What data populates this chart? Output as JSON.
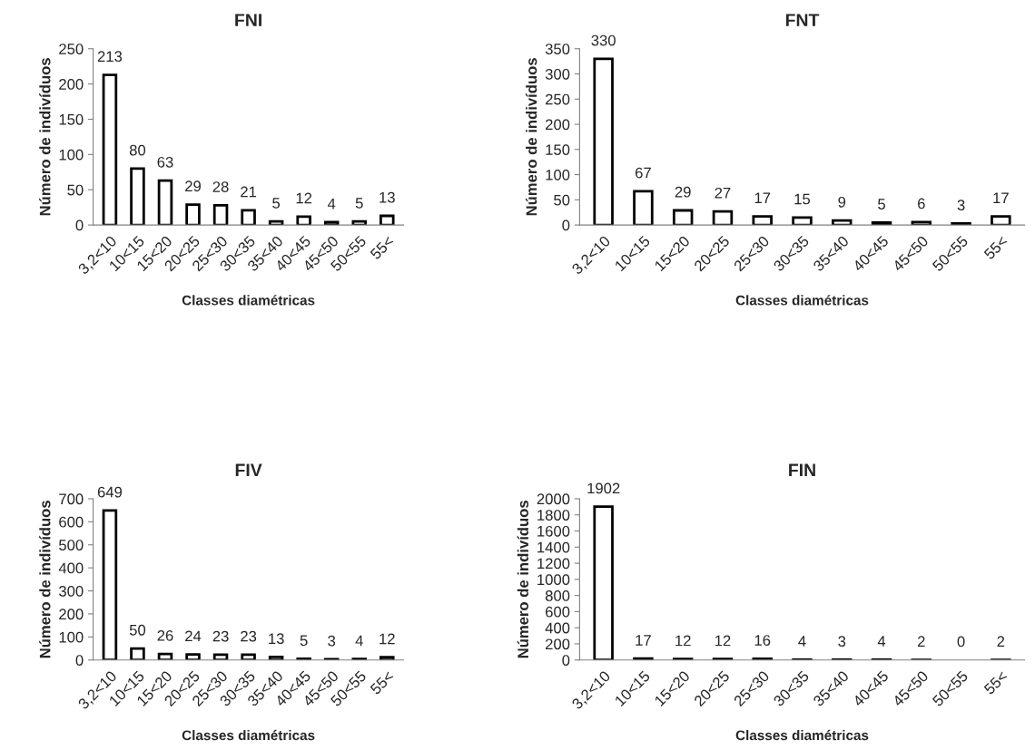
{
  "chart_data": [
    {
      "type": "bar",
      "title": "FNI",
      "xlabel": "Classes diamétricas",
      "ylabel": "Número de indivíduos",
      "categories": [
        "3,2<10",
        "10<15",
        "15<20",
        "20<25",
        "25<30",
        "30<35",
        "35<40",
        "40<45",
        "45<50",
        "50<55",
        "55<"
      ],
      "values": [
        213,
        80,
        63,
        29,
        28,
        21,
        5,
        12,
        4,
        5,
        13
      ],
      "color": "#ffffff",
      "ylim": [
        0,
        250
      ],
      "yticks": [
        0,
        50,
        100,
        150,
        200,
        250
      ],
      "data_labels": true,
      "grid": false,
      "legend": false
    },
    {
      "type": "bar",
      "title": "FNT",
      "xlabel": "Classes diamétricas",
      "ylabel": "Número de indivíduos",
      "categories": [
        "3,2<10",
        "10<15",
        "15<20",
        "20<25",
        "25<30",
        "30<35",
        "35<40",
        "40<45",
        "45<50",
        "50<55",
        "55<"
      ],
      "values": [
        330,
        67,
        29,
        27,
        17,
        15,
        9,
        5,
        6,
        3,
        17
      ],
      "color": "#ffffff",
      "ylim": [
        0,
        350
      ],
      "yticks": [
        0,
        50,
        100,
        150,
        200,
        250,
        300,
        350
      ],
      "data_labels": true,
      "grid": false,
      "legend": false
    },
    {
      "type": "bar",
      "title": "FIV",
      "xlabel": "Classes diamétricas",
      "ylabel": "Número de indivíduos",
      "categories": [
        "3,2<10",
        "10<15",
        "15<20",
        "20<25",
        "25<30",
        "30<35",
        "35<40",
        "40<45",
        "45<50",
        "50<55",
        "55<"
      ],
      "values": [
        649,
        50,
        26,
        24,
        23,
        23,
        13,
        5,
        3,
        4,
        12
      ],
      "color": "#ffffff",
      "ylim": [
        0,
        700
      ],
      "yticks": [
        0,
        100,
        200,
        300,
        400,
        500,
        600,
        700
      ],
      "data_labels": true,
      "grid": false,
      "legend": false
    },
    {
      "type": "bar",
      "title": "FIN",
      "xlabel": "Classes diamétricas",
      "ylabel": "Número de indivíduos",
      "categories": [
        "3,2<10",
        "10<15",
        "15<20",
        "20<25",
        "25<30",
        "30<35",
        "35<40",
        "40<45",
        "45<50",
        "50<55",
        "55<"
      ],
      "values": [
        1902,
        17,
        12,
        12,
        16,
        4,
        3,
        4,
        2,
        0,
        2
      ],
      "color": "#ffffff",
      "ylim": [
        0,
        2000
      ],
      "yticks": [
        0,
        200,
        400,
        600,
        800,
        1000,
        1200,
        1400,
        1600,
        1800,
        2000
      ],
      "data_labels": true,
      "grid": false,
      "legend": false
    }
  ]
}
